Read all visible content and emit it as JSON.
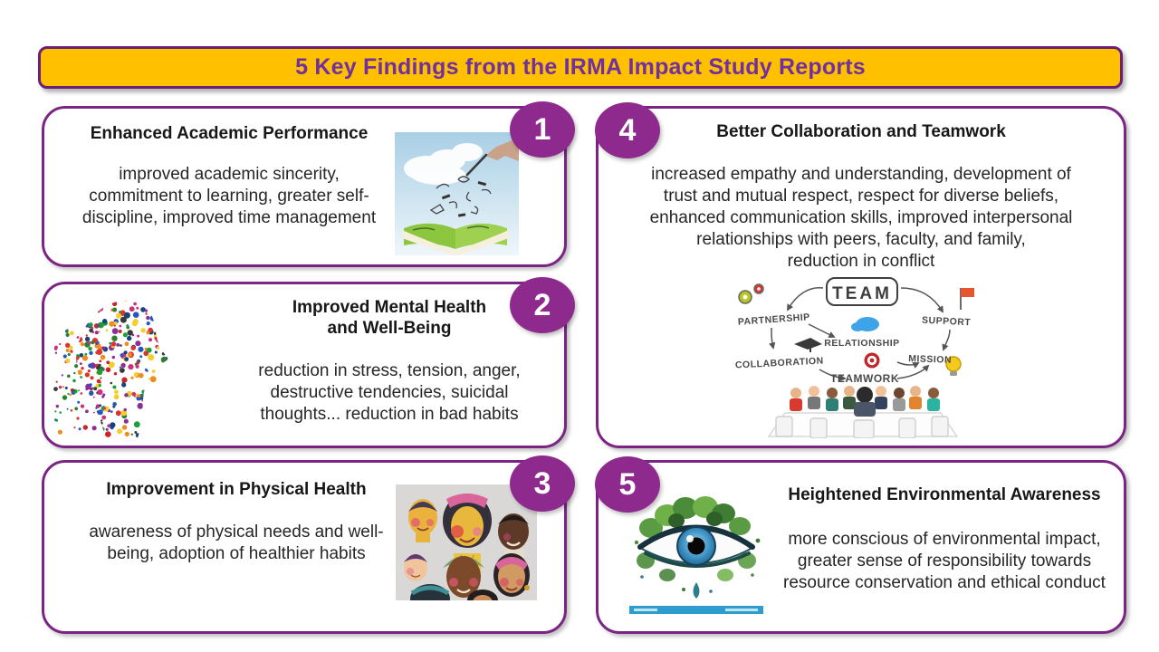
{
  "slide": {
    "title": "5 Key Findings from the IRMA Impact Study Reports"
  },
  "colors": {
    "banner_fill": "#FFC000",
    "banner_text": "#7030A0",
    "card_border": "#7B2483",
    "number_circle": "#8E2A8D",
    "body_text": "#262626"
  },
  "cards": [
    {
      "number": "1",
      "heading": "Enhanced Academic Performance",
      "body": "improved academic sincerity, commitment to learning, greater self-discipline, improved time management",
      "image_name": "open-book-ideas-illustration"
    },
    {
      "number": "2",
      "heading": "Improved Mental Health and Well-Being",
      "body": "reduction in stress, tension, anger, destructive tendencies, suicidal thoughts... reduction in bad habits",
      "image_name": "colorful-dots-head-profile-illustration"
    },
    {
      "number": "3",
      "heading": "Improvement in Physical Health",
      "body": "awareness of physical needs and well-being, adoption of healthier habits",
      "image_name": "diverse-faces-illustration"
    },
    {
      "number": "4",
      "heading": "Better Collaboration and Teamwork",
      "body": "increased empathy and understanding, development of trust and mutual respect, respect for diverse beliefs, enhanced communication skills, improved interpersonal relationships with peers, faculty, and family,",
      "body_line2": "reduction in conflict",
      "image_name": "team-collaboration-diagram"
    },
    {
      "number": "5",
      "heading": "Heightened Environmental Awareness",
      "body": "more conscious of environmental impact, greater sense of responsibility towards resource conservation and ethical conduct",
      "image_name": "eye-nature-illustration"
    }
  ],
  "team_diagram": {
    "center_label": "TEAM",
    "labels": [
      "PARTNERSHIP",
      "RELATIONSHIP",
      "SUPPORT",
      "COLLABORATION",
      "MISSION",
      "TEAMWORK"
    ]
  }
}
